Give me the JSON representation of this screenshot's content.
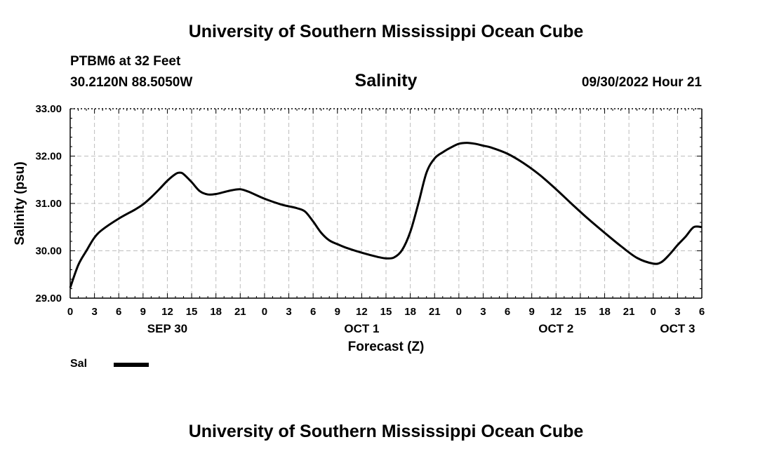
{
  "header": {
    "title": "University of Southern Mississippi Ocean Cube",
    "station": "PTBM6 at 32 Feet",
    "coordinates": "30.2120N  88.5050W",
    "datetime": "09/30/2022 Hour 21",
    "footer_title": "University of Southern Mississippi Ocean Cube"
  },
  "chart_data": {
    "type": "line",
    "title": "Salinity",
    "xlabel": "Forecast (Z)",
    "ylabel": "Salinity (psu)",
    "ylim": [
      29.0,
      33.0
    ],
    "y_ticks": [
      "29.00",
      "30.00",
      "31.00",
      "32.00",
      "33.00"
    ],
    "x_unit": "forecast hour",
    "xlim": [
      0,
      78
    ],
    "x_ticks": [
      "0",
      "3",
      "6",
      "9",
      "12",
      "15",
      "18",
      "21",
      "0",
      "3",
      "6",
      "9",
      "12",
      "15",
      "18",
      "21",
      "0",
      "3",
      "6",
      "9",
      "12",
      "15",
      "18",
      "21",
      "0",
      "3",
      "6"
    ],
    "date_labels": [
      {
        "label": "SEP 30",
        "hour": 12
      },
      {
        "label": "OCT 1",
        "hour": 36
      },
      {
        "label": "OCT 2",
        "hour": 60
      },
      {
        "label": "OCT 3",
        "hour": 75
      }
    ],
    "grid": true,
    "legend": "bottom-left",
    "series": [
      {
        "name": "Sal",
        "color": "#000000",
        "x": [
          0,
          1,
          2,
          3,
          4,
          6,
          8,
          9,
          10,
          11,
          12,
          13,
          13.5,
          14,
          15,
          16,
          17,
          18,
          19,
          20,
          21,
          22,
          24,
          26,
          27,
          28,
          29,
          30,
          31,
          32,
          33,
          34,
          36,
          38,
          39,
          40,
          41,
          42,
          43,
          44,
          45,
          46,
          47,
          48,
          49,
          50,
          51,
          52,
          54,
          56,
          58,
          60,
          62,
          64,
          66,
          68,
          70,
          72,
          73,
          74,
          75,
          76,
          77,
          78
        ],
        "values": [
          29.22,
          29.7,
          30.0,
          30.28,
          30.45,
          30.68,
          30.87,
          30.98,
          31.13,
          31.3,
          31.48,
          31.62,
          31.65,
          31.62,
          31.45,
          31.26,
          31.19,
          31.2,
          31.24,
          31.28,
          31.3,
          31.25,
          31.1,
          30.98,
          30.94,
          30.9,
          30.83,
          30.62,
          30.38,
          30.22,
          30.14,
          30.07,
          29.96,
          29.87,
          29.84,
          29.86,
          30.02,
          30.4,
          31.0,
          31.65,
          31.95,
          32.08,
          32.18,
          32.26,
          32.28,
          32.26,
          32.22,
          32.18,
          32.05,
          31.85,
          31.6,
          31.3,
          30.98,
          30.67,
          30.38,
          30.1,
          29.85,
          29.73,
          29.76,
          29.92,
          30.12,
          30.3,
          30.5,
          30.5
        ]
      }
    ]
  }
}
